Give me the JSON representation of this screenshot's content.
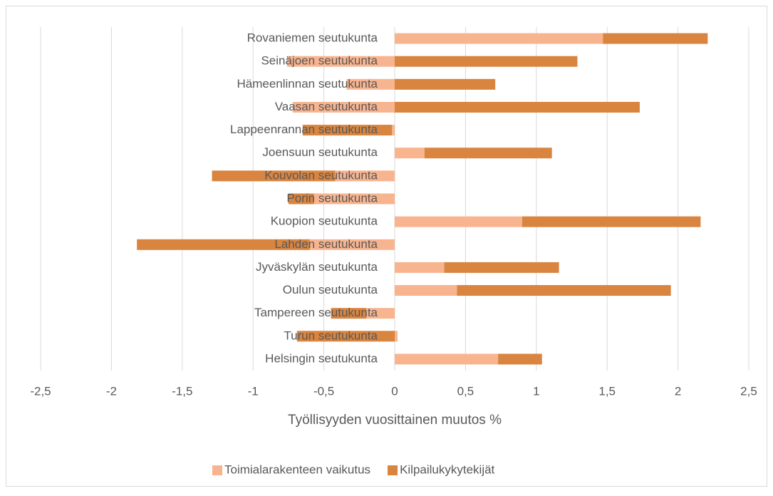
{
  "chart_data": {
    "type": "stacked-bar-horizontal",
    "x_label": "Työllisyyden vuosittainen muutos %",
    "categories": [
      "Rovaniemen seutukunta",
      "Seinäjoen seutukunta",
      "Hämeenlinnan seutukunta",
      "Vaasan seutukunta",
      "Lappeenrannan seutukunta",
      "Joensuun seutukunta",
      "Kouvolan seutukunta",
      "Porin seutukunta",
      "Kuopion seutukunta",
      "Lahden seutukunta",
      "Jyväskylän seutukunta",
      "Oulun seutukunta",
      "Tampereen seutukunta",
      "Turun seutukunta",
      "Helsingin seutukunta"
    ],
    "series": [
      {
        "name": "Toimialarakenteen vaikutus",
        "color": "#f8b48f",
        "values": [
          1.47,
          -0.76,
          -0.34,
          -0.72,
          -0.02,
          0.21,
          -0.42,
          -0.57,
          0.9,
          -0.6,
          0.35,
          0.44,
          -0.2,
          0.02,
          0.73
        ]
      },
      {
        "name": "Kilpailukykytekijät",
        "color": "#d9843f",
        "values": [
          0.74,
          1.29,
          0.71,
          1.73,
          -0.63,
          0.9,
          -0.87,
          -0.18,
          1.26,
          -1.22,
          0.81,
          1.51,
          -0.25,
          -0.69,
          0.31
        ]
      }
    ],
    "xlim": [
      -2.5,
      2.5
    ],
    "xticks": [
      {
        "value": -2.5,
        "label": "-2,5"
      },
      -2,
      {
        "value": -1.5,
        "label": "-1,5"
      },
      -1,
      {
        "value": -0.5,
        "label": "-0,5"
      },
      0,
      {
        "value": 0.5,
        "label": "0,5"
      },
      1,
      {
        "value": 1.5,
        "label": "1,5"
      },
      2,
      {
        "value": 2.5,
        "label": "2,5"
      }
    ],
    "grid": true,
    "legend": "bottom"
  }
}
